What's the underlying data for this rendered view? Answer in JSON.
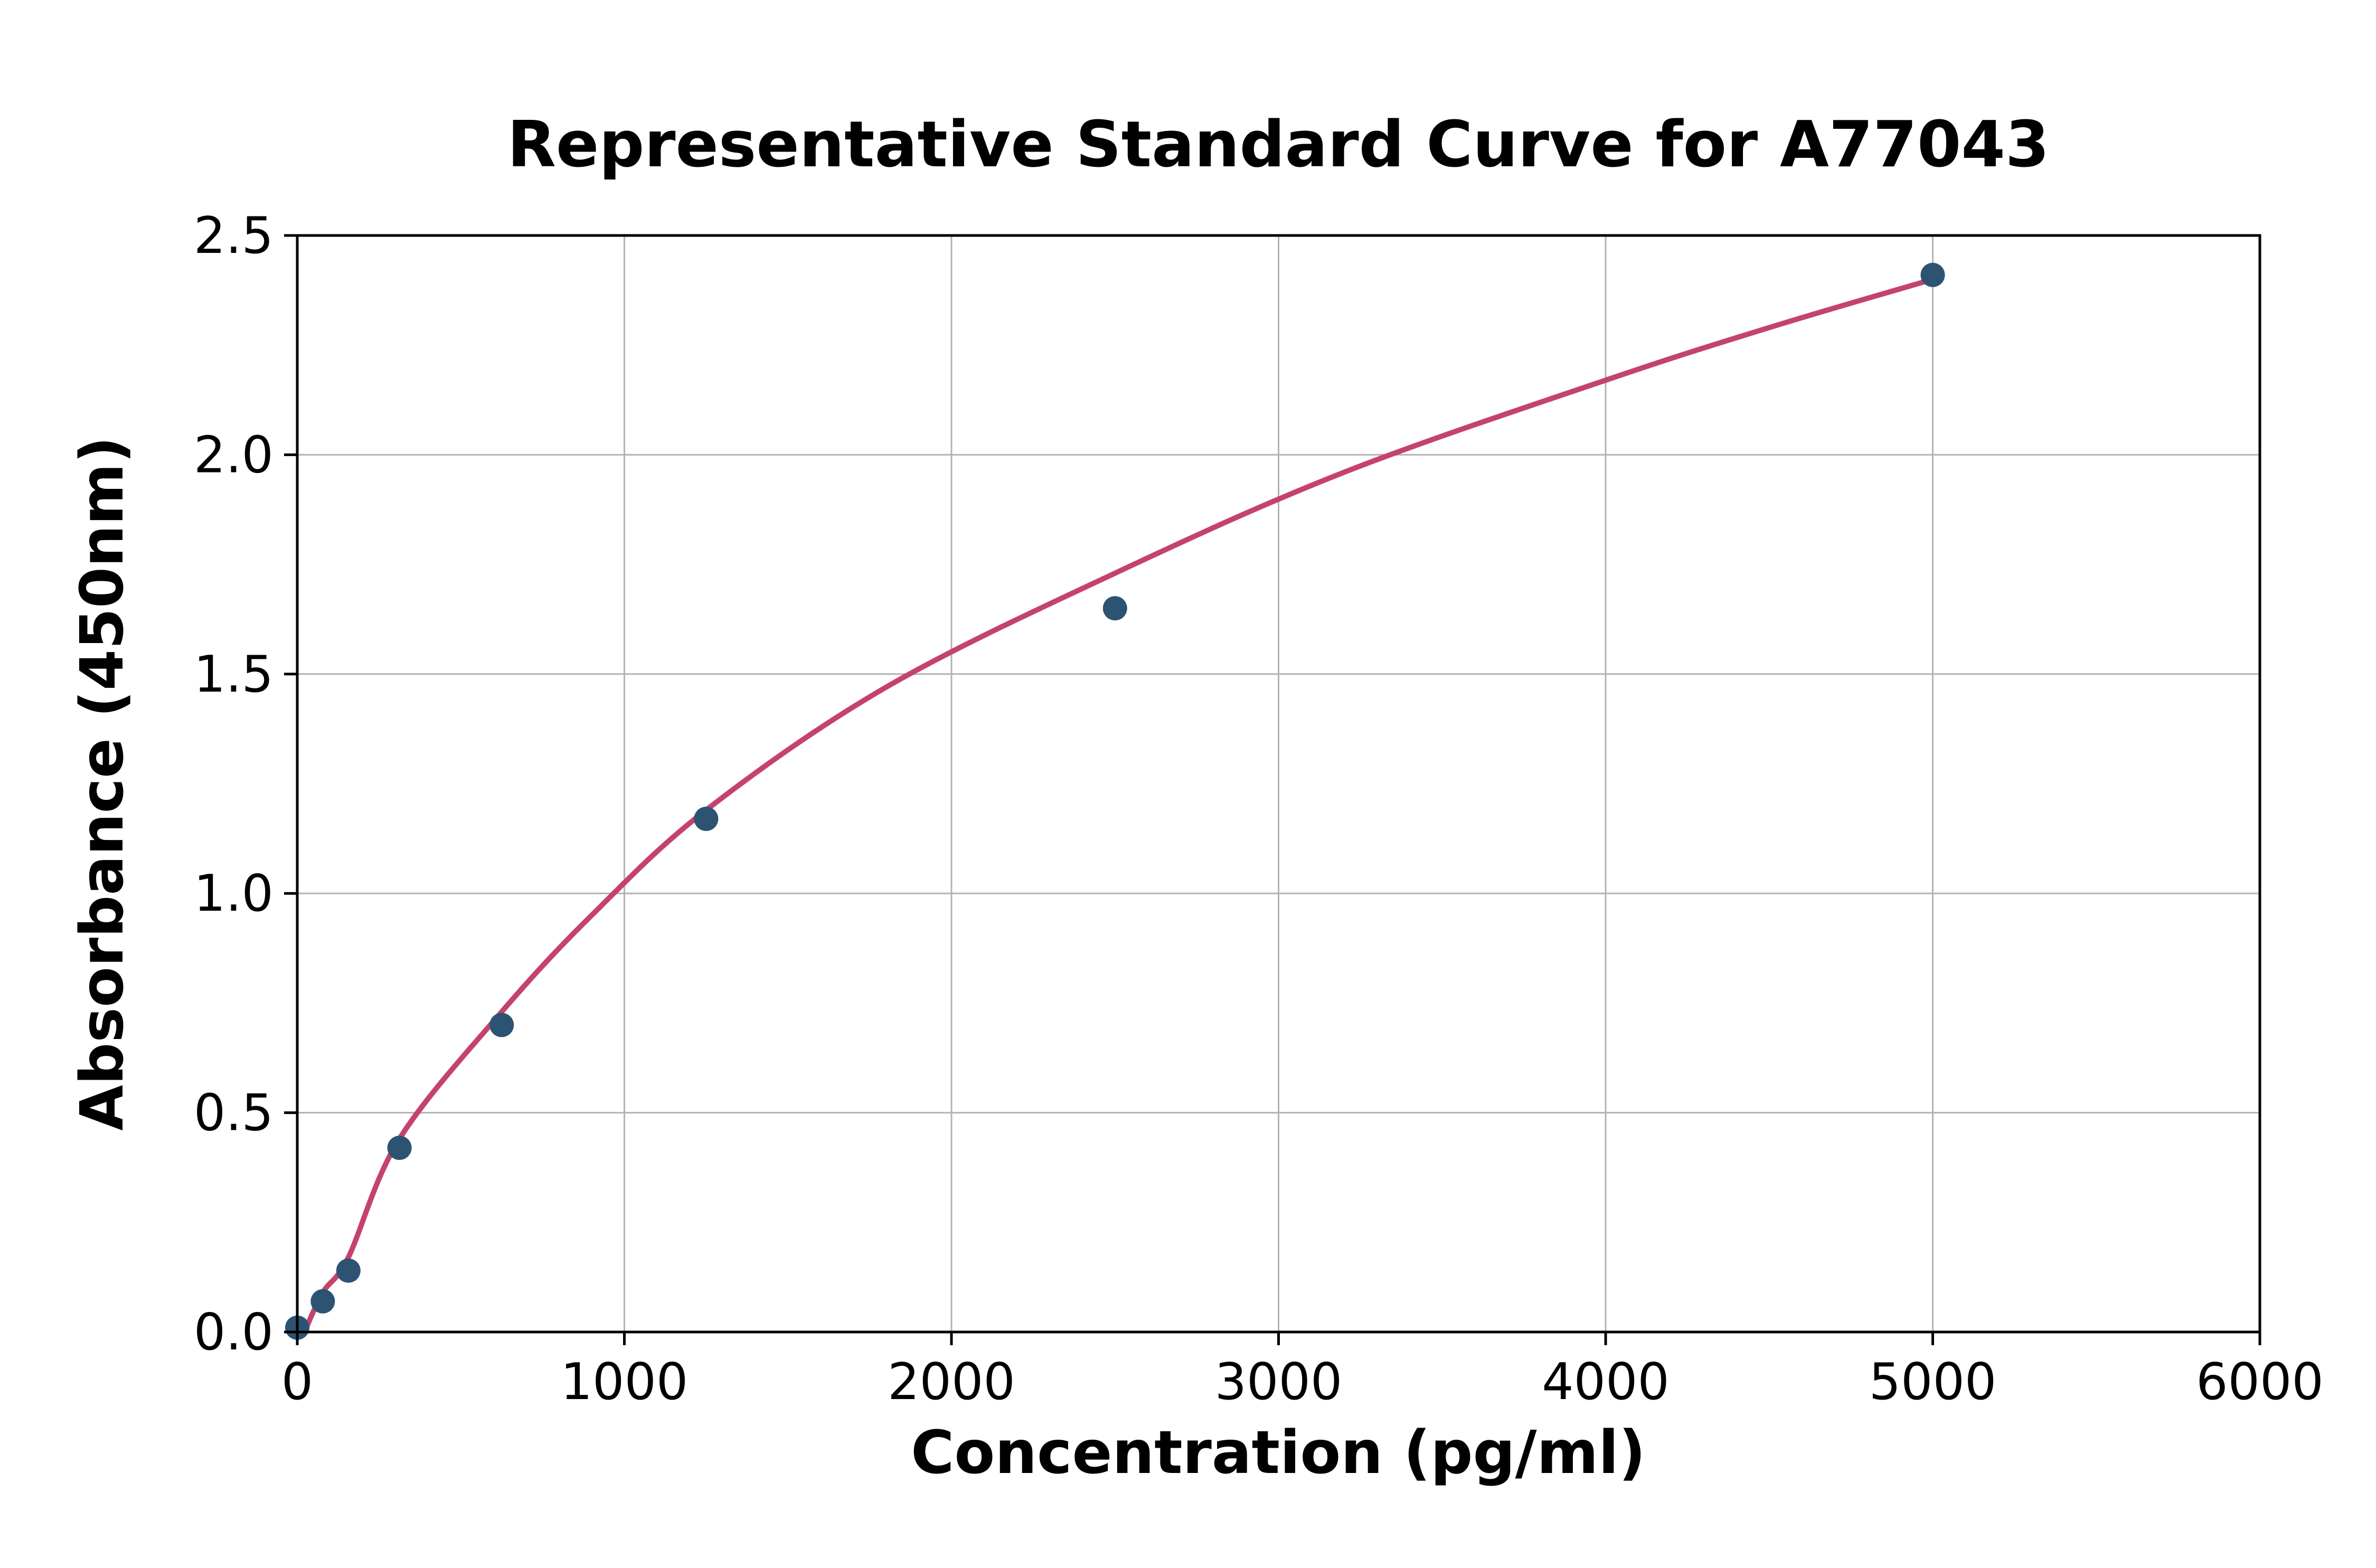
{
  "chart_data": {
    "type": "scatter",
    "title": "Representative Standard Curve for A77043",
    "xlabel": "Concentration (pg/ml)",
    "ylabel": "Absorbance (450nm)",
    "xlim": [
      0,
      6000
    ],
    "ylim": [
      0,
      2.5
    ],
    "grid": true,
    "legend": "none",
    "x_ticks": [
      {
        "value": 0,
        "label": "0"
      },
      {
        "value": 1000,
        "label": "1000"
      },
      {
        "value": 2000,
        "label": "2000"
      },
      {
        "value": 3000,
        "label": "3000"
      },
      {
        "value": 4000,
        "label": "4000"
      },
      {
        "value": 5000,
        "label": "5000"
      },
      {
        "value": 6000,
        "label": "6000"
      }
    ],
    "y_ticks": [
      {
        "value": 0.0,
        "label": "0.0"
      },
      {
        "value": 0.5,
        "label": "0.5"
      },
      {
        "value": 1.0,
        "label": "1.0"
      },
      {
        "value": 1.5,
        "label": "1.5"
      },
      {
        "value": 2.0,
        "label": "2.0"
      },
      {
        "value": 2.5,
        "label": "2.5"
      }
    ],
    "series": [
      {
        "name": "standard-points",
        "type": "scatter",
        "color": "#2d5373",
        "points": [
          {
            "x": 0,
            "y": 0.01
          },
          {
            "x": 78.1,
            "y": 0.07
          },
          {
            "x": 156.3,
            "y": 0.14
          },
          {
            "x": 312.5,
            "y": 0.42
          },
          {
            "x": 625,
            "y": 0.7
          },
          {
            "x": 1250,
            "y": 1.17
          },
          {
            "x": 2500,
            "y": 1.65
          },
          {
            "x": 5000,
            "y": 2.41
          }
        ]
      },
      {
        "name": "fit-curve",
        "type": "line",
        "color": "#c4436c",
        "points": [
          {
            "x": 22,
            "y": 0.0
          },
          {
            "x": 78,
            "y": 0.09
          },
          {
            "x": 156,
            "y": 0.17
          },
          {
            "x": 312,
            "y": 0.44
          },
          {
            "x": 625,
            "y": 0.73
          },
          {
            "x": 900,
            "y": 0.95
          },
          {
            "x": 1250,
            "y": 1.19
          },
          {
            "x": 1800,
            "y": 1.47
          },
          {
            "x": 2500,
            "y": 1.73
          },
          {
            "x": 3200,
            "y": 1.96
          },
          {
            "x": 4000,
            "y": 2.17
          },
          {
            "x": 4500,
            "y": 2.29
          },
          {
            "x": 5000,
            "y": 2.4
          }
        ]
      }
    ],
    "colors": {
      "marker": "#2d5373",
      "curve": "#c4436c",
      "gridline": "#b3b3b3",
      "spine": "#000000",
      "text": "#000000",
      "background": "#ffffff"
    }
  }
}
